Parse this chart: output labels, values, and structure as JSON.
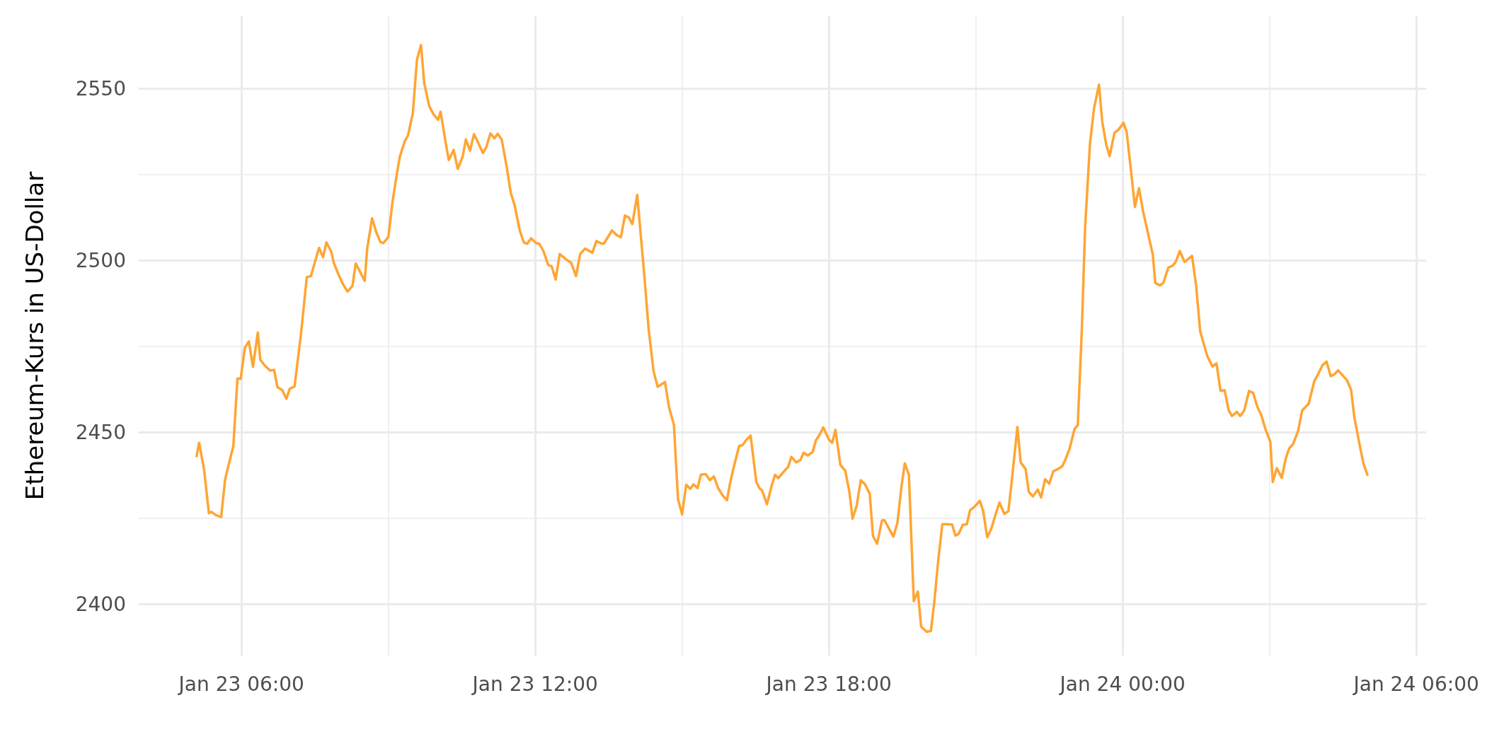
{
  "chart_data": {
    "type": "line",
    "ylabel": "Ethereum-Kurs in US-Dollar",
    "x": [
      "--01-23T05:05",
      "--01-23T05:08",
      "--01-23T05:14",
      "--01-23T05:20",
      "--01-23T05:23",
      "--01-23T05:29",
      "--01-23T05:35",
      "--01-23T05:40",
      "--01-23T05:50",
      "--01-23T05:55",
      "--01-23T05:59",
      "--01-23T06:04",
      "--01-23T06:09",
      "--01-23T06:14",
      "--01-23T06:20",
      "--01-23T06:23",
      "--01-23T06:28",
      "--01-23T06:35",
      "--01-23T06:40",
      "--01-23T06:44",
      "--01-23T06:50",
      "--01-23T06:55",
      "--01-23T06:59",
      "--01-23T07:05",
      "--01-23T07:13",
      "--01-23T07:20",
      "--01-23T07:25",
      "--01-23T07:35",
      "--01-23T07:40",
      "--01-23T07:44",
      "--01-23T07:50",
      "--01-23T07:53",
      "--01-23T07:59",
      "--01-23T08:04",
      "--01-23T08:10",
      "--01-23T08:16",
      "--01-23T08:20",
      "--01-23T08:31",
      "--01-23T08:34",
      "--01-23T08:40",
      "--01-23T08:45",
      "--01-23T08:50",
      "--01-23T08:54",
      "--01-23T09:00",
      "--01-23T09:05",
      "--01-23T09:10",
      "--01-23T09:14",
      "--01-23T09:20",
      "--01-23T09:24",
      "--01-23T09:30",
      "--01-23T09:35",
      "--01-23T09:40",
      "--01-23T09:44",
      "--01-23T09:50",
      "--01-23T09:55",
      "--01-23T10:01",
      "--01-23T10:04",
      "--01-23T10:10",
      "--01-23T10:14",
      "--01-23T10:20",
      "--01-23T10:25",
      "--01-23T10:31",
      "--01-23T10:35",
      "--01-23T10:40",
      "--01-23T10:45",
      "--01-23T10:50",
      "--01-23T10:56",
      "--01-23T11:00",
      "--01-23T11:05",
      "--01-23T11:10",
      "--01-23T11:14",
      "--01-23T11:19",
      "--01-23T11:25",
      "--01-23T11:30",
      "--01-23T11:35",
      "--01-23T11:41",
      "--01-23T11:46",
      "--01-23T11:50",
      "--01-23T11:55",
      "--01-23T12:01",
      "--01-23T12:05",
      "--01-23T12:10",
      "--01-23T12:16",
      "--01-23T12:20",
      "--01-23T12:25",
      "--01-23T12:30",
      "--01-23T12:40",
      "--01-23T12:44",
      "--01-23T12:50",
      "--01-23T12:55",
      "--01-23T13:01",
      "--01-23T13:10",
      "--01-23T13:15",
      "--01-23T13:21",
      "--01-23T13:24",
      "--01-23T13:29",
      "--01-23T13:34",
      "--01-23T13:40",
      "--01-23T13:45",
      "--01-23T13:50",
      "--01-23T13:55",
      "--01-23T13:59",
      "--01-23T14:05",
      "--01-23T14:10",
      "--01-23T14:14",
      "--01-23T14:19",
      "--01-23T14:25",
      "--01-23T14:30",
      "--01-23T14:39",
      "--01-23T14:44",
      "--01-23T14:50",
      "--01-23T14:55",
      "--01-23T15:00",
      "--01-23T15:05",
      "--01-23T15:10",
      "--01-23T15:14",
      "--01-23T15:19",
      "--01-23T15:23",
      "--01-23T15:29",
      "--01-23T15:34",
      "--01-23T15:39",
      "--01-23T15:44",
      "--01-23T15:50",
      "--01-23T15:55",
      "--01-23T15:59",
      "--01-23T16:04",
      "--01-23T16:10",
      "--01-23T16:14",
      "--01-23T16:19",
      "--01-23T16:24",
      "--01-23T16:31",
      "--01-23T16:35",
      "--01-23T16:38",
      "--01-23T16:44",
      "--01-23T16:50",
      "--01-23T16:54",
      "--01-23T16:58",
      "--01-23T17:04",
      "--01-23T17:10",
      "--01-23T17:14",
      "--01-23T17:20",
      "--01-23T17:25",
      "--01-23T17:29",
      "--01-23T17:34",
      "--01-23T17:40",
      "--01-23T17:44",
      "--01-23T17:49",
      "--01-23T17:53",
      "--01-23T18:00",
      "--01-23T18:04",
      "--01-23T18:08",
      "--01-23T18:14",
      "--01-23T18:20",
      "--01-23T18:25",
      "--01-23T18:29",
      "--01-23T18:34",
      "--01-23T18:39",
      "--01-23T18:44",
      "--01-23T18:50",
      "--01-23T18:54",
      "--01-23T18:59",
      "--01-23T19:05",
      "--01-23T19:08",
      "--01-23T19:19",
      "--01-23T19:24",
      "--01-23T19:29",
      "--01-23T19:33",
      "--01-23T19:38",
      "--01-23T19:44",
      "--01-23T19:49",
      "--01-23T19:53",
      "--01-23T20:00",
      "--01-23T20:05",
      "--01-23T20:09",
      "--01-23T20:14",
      "--01-23T20:19",
      "--01-23T20:24",
      "--01-23T20:31",
      "--01-23T20:35",
      "--01-23T20:39",
      "--01-23T20:44",
      "--01-23T20:49",
      "--01-23T20:53",
      "--01-23T20:58",
      "--01-23T21:05",
      "--01-23T21:09",
      "--01-23T21:14",
      "--01-23T21:19",
      "--01-23T21:24",
      "--01-23T21:29",
      "--01-23T21:35",
      "--01-23T21:40",
      "--01-23T21:45",
      "--01-23T21:51",
      "--01-23T21:55",
      "--01-23T22:01",
      "--01-23T22:05",
      "--01-23T22:10",
      "--01-23T22:16",
      "--01-23T22:20",
      "--01-23T22:25",
      "--01-23T22:30",
      "--01-23T22:35",
      "--01-23T22:41",
      "--01-23T22:46",
      "--01-23T22:50",
      "--01-23T22:55",
      "--01-23T23:01",
      "--01-23T23:05",
      "--01-23T23:10",
      "--01-23T23:14",
      "--01-23T23:20",
      "--01-23T23:25",
      "--01-23T23:31",
      "--01-23T23:35",
      "--01-23T23:40",
      "--01-23T23:44",
      "--01-23T23:50",
      "--01-23T23:55",
      "--01-24T00:01",
      "--01-24T00:05",
      "--01-24T00:10",
      "--01-24T00:15",
      "--01-24T00:20",
      "--01-24T00:25",
      "--01-24T00:32",
      "--01-24T00:37",
      "--01-24T00:40",
      "--01-24T00:46",
      "--01-24T00:50",
      "--01-24T00:56",
      "--01-24T01:01",
      "--01-24T01:05",
      "--01-24T01:10",
      "--01-24T01:16",
      "--01-24T01:25",
      "--01-24T01:30",
      "--01-24T01:35",
      "--01-24T01:40",
      "--01-24T01:44",
      "--01-24T01:50",
      "--01-24T01:55",
      "--01-24T02:00",
      "--01-24T02:05",
      "--01-24T02:10",
      "--01-24T02:14",
      "--01-24T02:20",
      "--01-24T02:24",
      "--01-24T02:29",
      "--01-24T02:35",
      "--01-24T02:40",
      "--01-24T02:45",
      "--01-24T02:50",
      "--01-24T02:55",
      "--01-24T03:01",
      "--01-24T03:04",
      "--01-24T03:09",
      "--01-24T03:15",
      "--01-24T03:20",
      "--01-24T03:24",
      "--01-24T03:29",
      "--01-24T03:35",
      "--01-24T03:40",
      "--01-24T03:48",
      "--01-24T03:55",
      "--01-24T03:59",
      "--01-24T04:05",
      "--01-24T04:10",
      "--01-24T04:15",
      "--01-24T04:20",
      "--01-24T04:24",
      "--01-24T04:35",
      "--01-24T04:40",
      "--01-24T04:44",
      "--01-24T04:50",
      "--01-24T04:55",
      "--01-24T05:00"
    ],
    "series": [
      {
        "color": "#ffa533",
        "values": [
          2443.0,
          2446.9,
          2439.3,
          2426.4,
          2426.8,
          2425.8,
          2425.3,
          2436.4,
          2446.0,
          2465.6,
          2465.5,
          2474.5,
          2476.4,
          2469.0,
          2479.0,
          2471.1,
          2469.5,
          2467.9,
          2468.1,
          2463.1,
          2462.2,
          2459.7,
          2462.6,
          2463.3,
          2478.8,
          2495.1,
          2495.4,
          2503.6,
          2500.9,
          2505.2,
          2502.5,
          2499.3,
          2495.8,
          2493.2,
          2490.9,
          2492.6,
          2499.1,
          2494.0,
          2503.3,
          2512.2,
          2508.3,
          2505.4,
          2505.0,
          2506.8,
          2516.9,
          2524.6,
          2530.1,
          2534.6,
          2536.3,
          2542.8,
          2558.3,
          2562.6,
          2551.5,
          2544.9,
          2542.6,
          2540.9,
          2543.2,
          2534.6,
          2529.2,
          2532.1,
          2526.6,
          2530.1,
          2535.2,
          2531.9,
          2536.7,
          2534.2,
          2531.2,
          2532.9,
          2536.9,
          2535.5,
          2536.8,
          2535.1,
          2527.2,
          2519.6,
          2515.8,
          2508.7,
          2505.2,
          2504.8,
          2506.4,
          2505.0,
          2504.8,
          2502.7,
          2498.6,
          2498.3,
          2494.4,
          2501.8,
          2499.9,
          2499.3,
          2495.4,
          2501.8,
          2503.4,
          2502.2,
          2505.6,
          2504.9,
          2504.8,
          2506.7,
          2508.7,
          2507.3,
          2506.7,
          2513.0,
          2512.4,
          2510.5,
          2519.0,
          2505.6,
          2494.8,
          2480.0,
          2467.8,
          2463.2,
          2464.6,
          2457.2,
          2452.1,
          2430.5,
          2426.1,
          2434.7,
          2433.5,
          2434.8,
          2433.7,
          2437.6,
          2437.8,
          2436.0,
          2437.1,
          2433.8,
          2431.5,
          2430.2,
          2435.4,
          2440.5,
          2446.0,
          2446.2,
          2447.8,
          2449.0,
          2435.5,
          2433.6,
          2433.1,
          2429.0,
          2434.6,
          2437.6,
          2436.6,
          2438.3,
          2439.9,
          2442.8,
          2441.2,
          2441.9,
          2444.0,
          2443.2,
          2444.2,
          2447.6,
          2449.4,
          2451.4,
          2447.8,
          2446.9,
          2450.7,
          2440.5,
          2438.8,
          2432.7,
          2424.8,
          2428.6,
          2436.0,
          2434.9,
          2432.1,
          2419.8,
          2417.5,
          2424.3,
          2424.4,
          2419.6,
          2423.7,
          2434.4,
          2440.9,
          2437.6,
          2400.8,
          2403.6,
          2393.4,
          2391.9,
          2392.2,
          2400.2,
          2412.8,
          2423.2,
          2423.2,
          2423.1,
          2419.9,
          2420.4,
          2423.0,
          2423.2,
          2427.3,
          2428.2,
          2430.0,
          2427.1,
          2419.4,
          2421.9,
          2425.9,
          2429.5,
          2426.2,
          2427.0,
          2437.8,
          2451.5,
          2441.2,
          2439.3,
          2432.6,
          2431.3,
          2433.3,
          2431.0,
          2436.3,
          2435.0,
          2438.6,
          2439.3,
          2440.1,
          2442.1,
          2445.2,
          2450.9,
          2452.0,
          2480.0,
          2509.6,
          2534.1,
          2544.3,
          2551.1,
          2540.3,
          2533.5,
          2530.3,
          2537.1,
          2538.0,
          2540.0,
          2537.2,
          2526.6,
          2515.5,
          2521.0,
          2514.3,
          2506.9,
          2501.6,
          2493.4,
          2492.7,
          2493.5,
          2497.9,
          2498.4,
          2499.5,
          2502.7,
          2499.5,
          2501.3,
          2492.8,
          2479.4,
          2475.2,
          2472.0,
          2469.1,
          2470.0,
          2462.0,
          2462.2,
          2456.3,
          2454.7,
          2455.9,
          2454.7,
          2456.3,
          2462.0,
          2461.4,
          2457.4,
          2454.9,
          2450.9,
          2447.2,
          2435.5,
          2439.5,
          2436.7,
          2442.4,
          2445.2,
          2446.6,
          2450.3,
          2456.3,
          2458.3,
          2464.9,
          2466.6,
          2469.5,
          2470.5,
          2466.3,
          2466.9,
          2468.0,
          2465.1,
          2462.3,
          2454.3,
          2446.9,
          2441.0,
          2437.6
        ]
      }
    ],
    "xlim": [
      "--01-23T03:54",
      "--01-24T06:12"
    ],
    "xticks": [
      {
        "value": "--01-23T06:00",
        "label": "Jan 23 06:00"
      },
      {
        "value": "--01-23T09:00",
        "label": null
      },
      {
        "value": "--01-23T12:00",
        "label": "Jan 23 12:00"
      },
      {
        "value": "--01-23T15:00",
        "label": null
      },
      {
        "value": "--01-23T18:00",
        "label": "Jan 23 18:00"
      },
      {
        "value": "--01-23T21:00",
        "label": null
      },
      {
        "value": "--01-24T00:00",
        "label": "Jan 24 00:00"
      },
      {
        "value": "--01-24T03:00",
        "label": null
      },
      {
        "value": "--01-24T06:00",
        "label": "Jan 24 06:00"
      }
    ],
    "ylim": [
      2385,
      2571
    ],
    "yticks": [
      2400,
      {
        "value": 2425,
        "label": null
      },
      2450,
      {
        "value": 2475,
        "label": null
      },
      2500,
      {
        "value": 2525,
        "label": null
      },
      2550
    ],
    "grid": true
  }
}
